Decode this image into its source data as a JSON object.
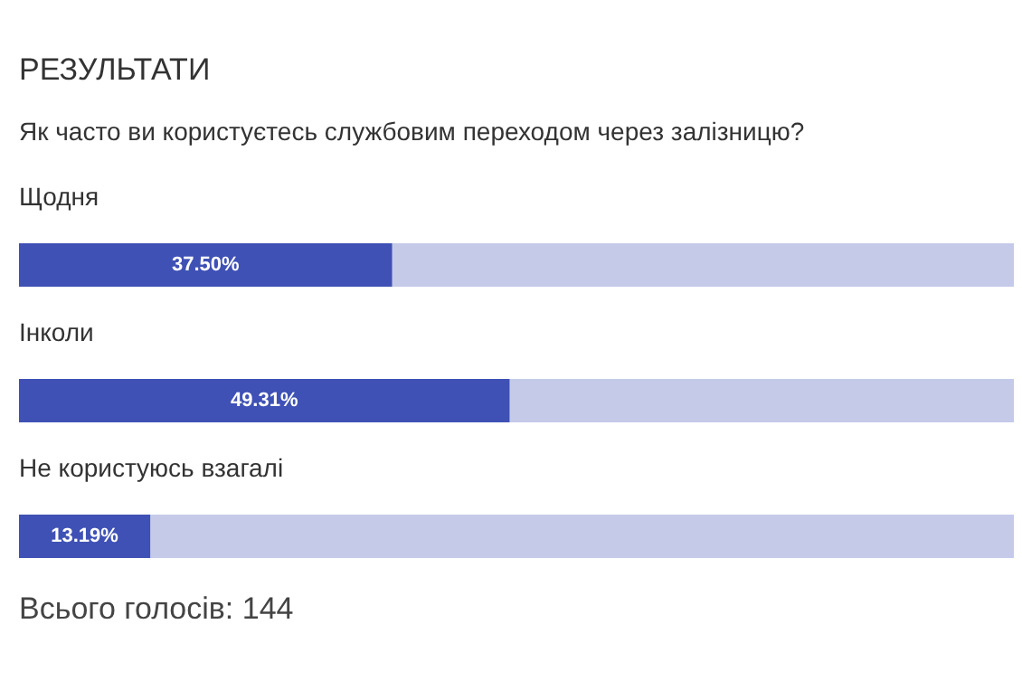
{
  "chart_data": {
    "type": "bar",
    "orientation": "horizontal",
    "title": "РЕЗУЛЬТАТИ",
    "subtitle": "Як часто ви користуєтесь службовим переходом через залізницю?",
    "categories": [
      "Щодня",
      "Інколи",
      "Не користуюсь взагалі"
    ],
    "values": [
      37.5,
      49.31,
      13.19
    ],
    "value_labels": [
      "37.50%",
      "49.31%",
      "13.19%"
    ],
    "color": "#3f51b5",
    "xlim": [
      0,
      100
    ],
    "tick_labels": false,
    "grid": false,
    "annotations": [
      "Всього голосів: 144"
    ]
  }
}
